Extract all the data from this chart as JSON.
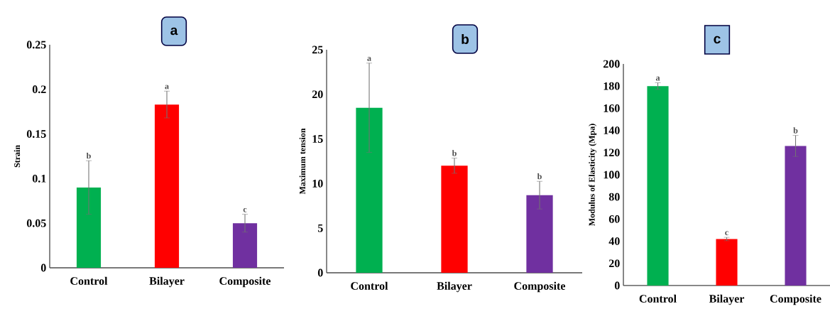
{
  "chart_data": [
    {
      "type": "bar",
      "title": "a",
      "ylabel": "Strain",
      "categories": [
        "Control",
        "Bilayer",
        "Composite"
      ],
      "values": [
        0.09,
        0.183,
        0.05
      ],
      "errors": [
        0.03,
        0.015,
        0.01
      ],
      "colors": [
        "#00b050",
        "#ff0000",
        "#7030a0"
      ],
      "ylim": [
        0,
        0.25
      ],
      "yticks": [
        0,
        0.05,
        0.1,
        0.15,
        0.2,
        0.25
      ],
      "annotations": [
        {
          "text": "b",
          "x": "Control",
          "y": 0.12
        },
        {
          "text": "a",
          "x": "Bilayer",
          "y": 0.198
        },
        {
          "text": "c",
          "x": "Composite",
          "y": 0.06
        }
      ]
    },
    {
      "type": "bar",
      "title": "b",
      "ylabel": "Maximum tension",
      "categories": [
        "Control",
        "Bilayer",
        "Composite"
      ],
      "values": [
        18.5,
        12.0,
        8.7
      ],
      "errors": [
        5.0,
        0.85,
        1.55
      ],
      "colors": [
        "#00b050",
        "#ff0000",
        "#7030a0"
      ],
      "ylim": [
        0,
        25
      ],
      "yticks": [
        0,
        5,
        10,
        15,
        20,
        25
      ],
      "annotations": [
        {
          "text": "a",
          "x": "Control",
          "y": 23.5
        },
        {
          "text": "b",
          "x": "Bilayer",
          "y": 12.85
        },
        {
          "text": "b",
          "x": "Composite",
          "y": 10.25
        }
      ]
    },
    {
      "type": "bar",
      "title": "c",
      "ylabel": "Modulus of Elasticity (Mpa)",
      "categories": [
        "Control",
        "Bilayer",
        "Composite"
      ],
      "values": [
        180,
        42,
        126
      ],
      "errors": [
        3,
        1.5,
        9.5
      ],
      "colors": [
        "#00b050",
        "#ff0000",
        "#7030a0"
      ],
      "ylim": [
        0,
        200
      ],
      "yticks": [
        0,
        20,
        40,
        60,
        80,
        100,
        120,
        140,
        160,
        180,
        200
      ],
      "annotations": [
        {
          "text": "a",
          "x": "Control",
          "y": 183
        },
        {
          "text": "c",
          "x": "Bilayer",
          "y": 43.5
        },
        {
          "text": "b",
          "x": "Composite",
          "y": 135.5
        }
      ]
    }
  ]
}
